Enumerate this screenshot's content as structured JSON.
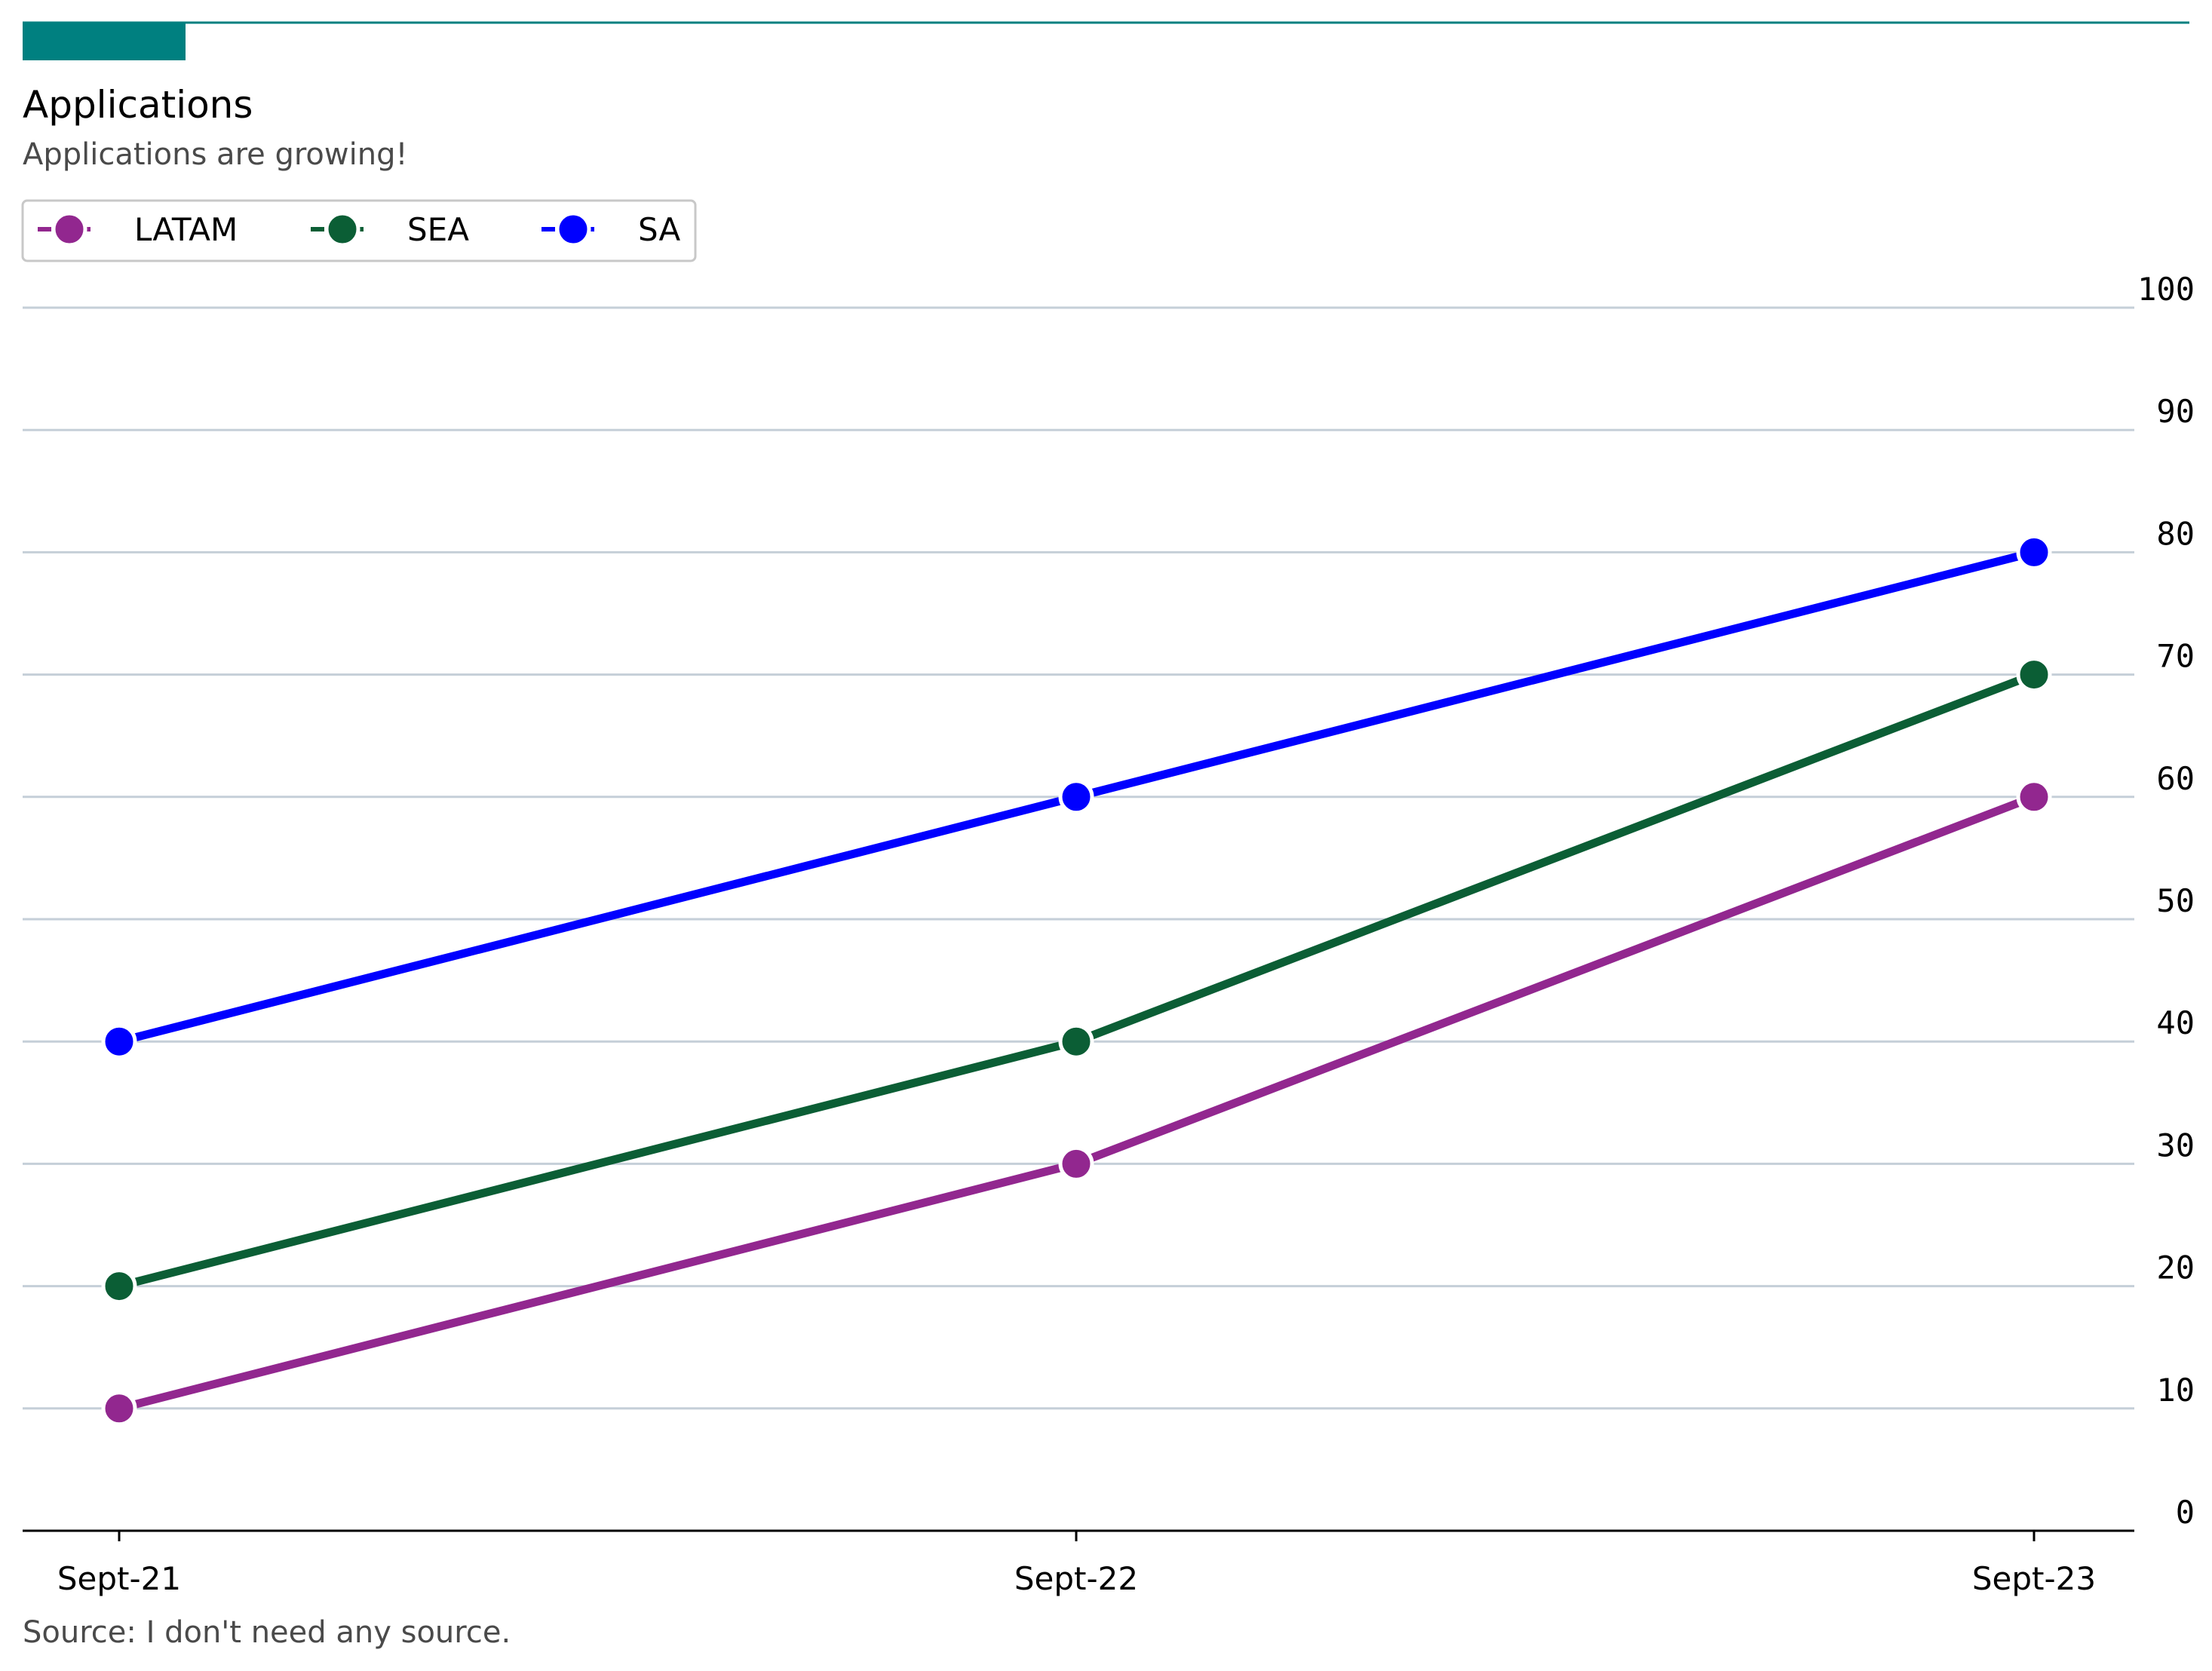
{
  "header": {
    "accent_color": "#008080",
    "title": "Applications",
    "subtitle": "Applications are growing!"
  },
  "footer": {
    "source": "Source: I don't need any source."
  },
  "chart_data": {
    "type": "line",
    "title": "Applications",
    "subtitle": "Applications are growing!",
    "xlabel": "",
    "ylabel": "",
    "categories": [
      "Sept-21",
      "Sept-22",
      "Sept-23"
    ],
    "ylim": [
      0,
      100
    ],
    "yticks": [
      0,
      10,
      20,
      30,
      40,
      50,
      60,
      70,
      80,
      90,
      100
    ],
    "yaxis_side": "right",
    "grid": "horizontal",
    "legend": {
      "placement": "top-left"
    },
    "series": [
      {
        "name": "LATAM",
        "color": "#92278f",
        "values": [
          10,
          30,
          60
        ]
      },
      {
        "name": "SEA",
        "color": "#0b5e35",
        "values": [
          20,
          40,
          70
        ]
      },
      {
        "name": "SA",
        "color": "#0000ff",
        "values": [
          40,
          60,
          80
        ]
      }
    ],
    "source": "Source: I don't need any source."
  }
}
